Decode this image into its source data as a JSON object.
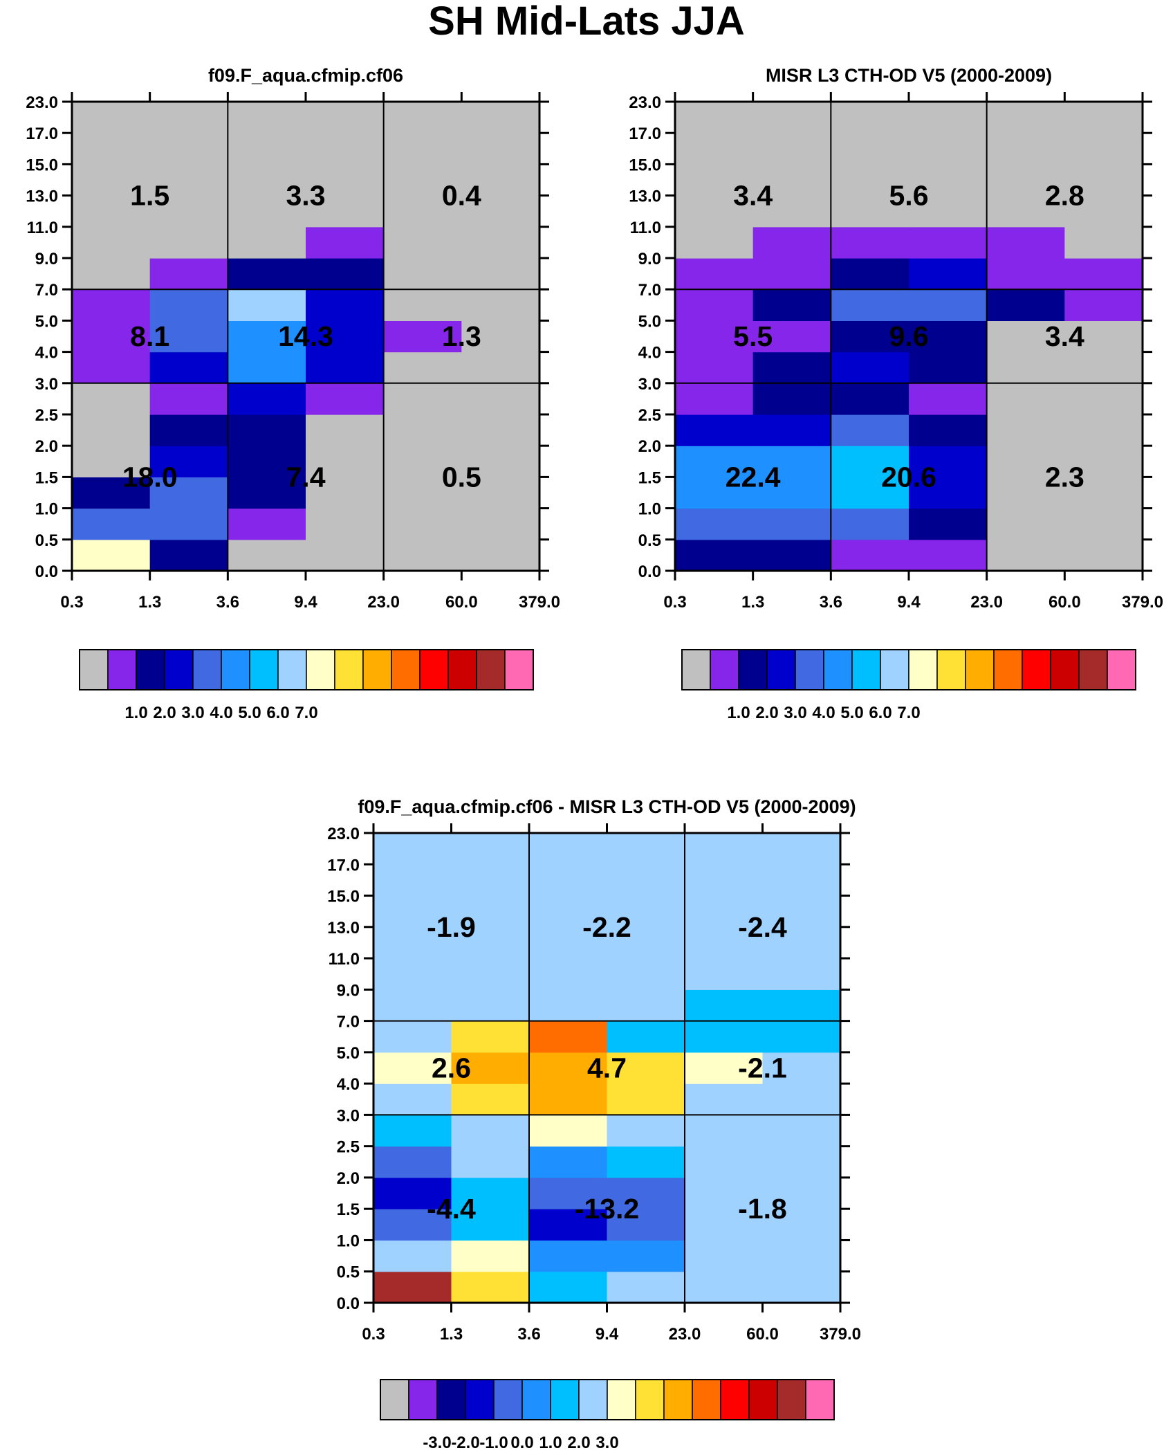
{
  "figure": {
    "title": "SH Mid-Lats JJA"
  },
  "colors": {
    "palette": [
      "#c0c0c0",
      "#8526ea",
      "#00008f",
      "#0000cd",
      "#4169e1",
      "#1e90ff",
      "#00bfff",
      "#a0d2ff",
      "#ffffc8",
      "#ffe135",
      "#ffad00",
      "#ff6d00",
      "#ff0000",
      "#cd0000",
      "#a52a2a",
      "#ff69b4"
    ],
    "ink": "#000000"
  },
  "chart_data": [
    {
      "id": "model",
      "type": "heatmap",
      "title": "f09.F_aqua.cfmip.cf06",
      "xlabel": "",
      "ylabel": "",
      "x_tick_labels": [
        "0.3",
        "1.3",
        "3.6",
        "9.4",
        "23.0",
        "60.0",
        "379.0"
      ],
      "y_tick_labels": [
        "0.0",
        "0.5",
        "1.0",
        "1.5",
        "2.0",
        "2.5",
        "3.0",
        "4.0",
        "5.0",
        "7.0",
        "9.0",
        "11.0",
        "13.0",
        "15.0",
        "17.0",
        "23.0"
      ],
      "note": "cells are palette color indices; rows bottom(0.0-0.5) to top(17.0-23.0), columns left to right",
      "cells": [
        [
          8,
          2,
          0,
          0,
          0,
          0
        ],
        [
          4,
          4,
          1,
          0,
          0,
          0
        ],
        [
          2,
          4,
          2,
          0,
          0,
          0
        ],
        [
          0,
          3,
          2,
          0,
          0,
          0
        ],
        [
          0,
          2,
          2,
          0,
          0,
          0
        ],
        [
          0,
          1,
          3,
          1,
          0,
          0
        ],
        [
          1,
          3,
          5,
          3,
          0,
          0
        ],
        [
          1,
          4,
          5,
          3,
          1,
          0
        ],
        [
          1,
          4,
          7,
          3,
          0,
          0
        ],
        [
          0,
          1,
          2,
          2,
          0,
          0
        ],
        [
          0,
          0,
          0,
          1,
          0,
          0
        ],
        [
          0,
          0,
          0,
          0,
          0,
          0
        ],
        [
          0,
          0,
          0,
          0,
          0,
          0
        ],
        [
          0,
          0,
          0,
          0,
          0,
          0
        ],
        [
          0,
          0,
          0,
          0,
          0,
          0
        ]
      ],
      "group_values": [
        {
          "label": "1.5",
          "cols": [
            0,
            1
          ],
          "rows": [
            9,
            14
          ]
        },
        {
          "label": "3.3",
          "cols": [
            2,
            3
          ],
          "rows": [
            9,
            14
          ]
        },
        {
          "label": "0.4",
          "cols": [
            4,
            5
          ],
          "rows": [
            9,
            14
          ]
        },
        {
          "label": "8.1",
          "cols": [
            0,
            1
          ],
          "rows": [
            6,
            8
          ]
        },
        {
          "label": "14.3",
          "cols": [
            2,
            3
          ],
          "rows": [
            6,
            8
          ]
        },
        {
          "label": "1.3",
          "cols": [
            4,
            5
          ],
          "rows": [
            6,
            8
          ]
        },
        {
          "label": "18.0",
          "cols": [
            0,
            1
          ],
          "rows": [
            0,
            5
          ]
        },
        {
          "label": "7.4",
          "cols": [
            2,
            3
          ],
          "rows": [
            0,
            5
          ]
        },
        {
          "label": "0.5",
          "cols": [
            4,
            5
          ],
          "rows": [
            0,
            5
          ]
        }
      ],
      "colorbar": {
        "labels": [
          "1.0",
          "2.0",
          "3.0",
          "4.0",
          "5.0",
          "6.0",
          "7.0"
        ],
        "boxes": [
          0,
          1,
          2,
          3,
          4,
          5,
          6,
          7,
          8,
          9,
          10,
          11,
          12,
          13,
          14,
          15
        ]
      }
    },
    {
      "id": "obs",
      "type": "heatmap",
      "title": "MISR L3 CTH-OD V5 (2000-2009)",
      "xlabel": "",
      "ylabel": "",
      "x_tick_labels": [
        "0.3",
        "1.3",
        "3.6",
        "9.4",
        "23.0",
        "60.0",
        "379.0"
      ],
      "y_tick_labels": [
        "0.0",
        "0.5",
        "1.0",
        "1.5",
        "2.0",
        "2.5",
        "3.0",
        "4.0",
        "5.0",
        "7.0",
        "9.0",
        "11.0",
        "13.0",
        "15.0",
        "17.0",
        "23.0"
      ],
      "note": "cells are palette color indices; rows bottom(0.0-0.5) to top(17.0-23.0), columns left to right",
      "cells": [
        [
          2,
          2,
          1,
          1,
          0,
          0
        ],
        [
          4,
          4,
          4,
          2,
          0,
          0
        ],
        [
          5,
          5,
          6,
          3,
          0,
          0
        ],
        [
          5,
          5,
          6,
          3,
          0,
          0
        ],
        [
          3,
          3,
          4,
          2,
          0,
          0
        ],
        [
          1,
          2,
          2,
          1,
          0,
          0
        ],
        [
          1,
          2,
          3,
          2,
          0,
          0
        ],
        [
          1,
          1,
          2,
          2,
          0,
          0
        ],
        [
          1,
          2,
          4,
          4,
          2,
          1
        ],
        [
          1,
          1,
          2,
          3,
          1,
          1
        ],
        [
          0,
          1,
          1,
          1,
          1,
          0
        ],
        [
          0,
          0,
          0,
          0,
          0,
          0
        ],
        [
          0,
          0,
          0,
          0,
          0,
          0
        ],
        [
          0,
          0,
          0,
          0,
          0,
          0
        ],
        [
          0,
          0,
          0,
          0,
          0,
          0
        ]
      ],
      "group_values": [
        {
          "label": "3.4",
          "cols": [
            0,
            1
          ],
          "rows": [
            9,
            14
          ]
        },
        {
          "label": "5.6",
          "cols": [
            2,
            3
          ],
          "rows": [
            9,
            14
          ]
        },
        {
          "label": "2.8",
          "cols": [
            4,
            5
          ],
          "rows": [
            9,
            14
          ]
        },
        {
          "label": "5.5",
          "cols": [
            0,
            1
          ],
          "rows": [
            6,
            8
          ]
        },
        {
          "label": "9.6",
          "cols": [
            2,
            3
          ],
          "rows": [
            6,
            8
          ]
        },
        {
          "label": "3.4",
          "cols": [
            4,
            5
          ],
          "rows": [
            6,
            8
          ]
        },
        {
          "label": "22.4",
          "cols": [
            0,
            1
          ],
          "rows": [
            0,
            5
          ]
        },
        {
          "label": "20.6",
          "cols": [
            2,
            3
          ],
          "rows": [
            0,
            5
          ]
        },
        {
          "label": "2.3",
          "cols": [
            4,
            5
          ],
          "rows": [
            0,
            5
          ]
        }
      ],
      "colorbar": {
        "labels": [
          "1.0",
          "2.0",
          "3.0",
          "4.0",
          "5.0",
          "6.0",
          "7.0"
        ],
        "boxes": [
          0,
          1,
          2,
          3,
          4,
          5,
          6,
          7,
          8,
          9,
          10,
          11,
          12,
          13,
          14,
          15
        ]
      }
    },
    {
      "id": "diff",
      "type": "heatmap",
      "title": "f09.F_aqua.cfmip.cf06 - MISR L3 CTH-OD V5 (2000-2009)",
      "xlabel": "",
      "ylabel": "",
      "x_tick_labels": [
        "0.3",
        "1.3",
        "3.6",
        "9.4",
        "23.0",
        "60.0",
        "379.0"
      ],
      "y_tick_labels": [
        "0.0",
        "0.5",
        "1.0",
        "1.5",
        "2.0",
        "2.5",
        "3.0",
        "4.0",
        "5.0",
        "7.0",
        "9.0",
        "11.0",
        "13.0",
        "15.0",
        "17.0",
        "23.0"
      ],
      "note": "cells are palette color indices; rows bottom(0.0-0.5) to top(17.0-23.0), columns left to right",
      "cells": [
        [
          14,
          9,
          6,
          7,
          7,
          7
        ],
        [
          7,
          8,
          5,
          5,
          7,
          7
        ],
        [
          4,
          6,
          3,
          4,
          7,
          7
        ],
        [
          3,
          6,
          4,
          4,
          7,
          7
        ],
        [
          4,
          7,
          5,
          6,
          7,
          7
        ],
        [
          6,
          7,
          8,
          7,
          7,
          7
        ],
        [
          7,
          9,
          10,
          9,
          7,
          7
        ],
        [
          8,
          10,
          10,
          9,
          8,
          7
        ],
        [
          7,
          9,
          11,
          6,
          6,
          6
        ],
        [
          7,
          7,
          7,
          7,
          6,
          6
        ],
        [
          7,
          7,
          7,
          7,
          7,
          7
        ],
        [
          7,
          7,
          7,
          7,
          7,
          7
        ],
        [
          7,
          7,
          7,
          7,
          7,
          7
        ],
        [
          7,
          7,
          7,
          7,
          7,
          7
        ],
        [
          7,
          7,
          7,
          7,
          7,
          7
        ]
      ],
      "group_values": [
        {
          "label": "-1.9",
          "cols": [
            0,
            1
          ],
          "rows": [
            9,
            14
          ]
        },
        {
          "label": "-2.2",
          "cols": [
            2,
            3
          ],
          "rows": [
            9,
            14
          ]
        },
        {
          "label": "-2.4",
          "cols": [
            4,
            5
          ],
          "rows": [
            9,
            14
          ]
        },
        {
          "label": "2.6",
          "cols": [
            0,
            1
          ],
          "rows": [
            6,
            8
          ]
        },
        {
          "label": "4.7",
          "cols": [
            2,
            3
          ],
          "rows": [
            6,
            8
          ]
        },
        {
          "label": "-2.1",
          "cols": [
            4,
            5
          ],
          "rows": [
            6,
            8
          ]
        },
        {
          "label": "-4.4",
          "cols": [
            0,
            1
          ],
          "rows": [
            0,
            5
          ]
        },
        {
          "label": "-13.2",
          "cols": [
            2,
            3
          ],
          "rows": [
            0,
            5
          ]
        },
        {
          "label": "-1.8",
          "cols": [
            4,
            5
          ],
          "rows": [
            0,
            5
          ]
        }
      ],
      "colorbar": {
        "labels": [
          "-3.0",
          "-2.0",
          "-1.0",
          "0.0",
          "1.0",
          "2.0",
          "3.0"
        ],
        "boxes": [
          0,
          1,
          2,
          3,
          4,
          5,
          6,
          7,
          8,
          9,
          10,
          11,
          12,
          13,
          14,
          15
        ]
      }
    }
  ]
}
